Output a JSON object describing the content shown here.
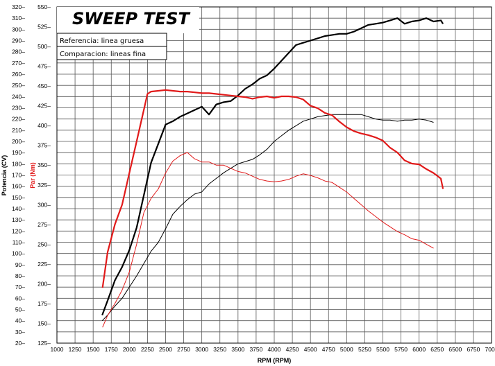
{
  "chart_data": {
    "type": "line",
    "title": "SWEEP TEST",
    "xlabel": "RPM (RPM)",
    "ylabel_left": "Potencia (CV)",
    "ylabel_right": "Par (Nm)",
    "legend": [
      "Referencia: linea gruesa",
      "Comparacion: lineas fina"
    ],
    "xlim": [
      1000,
      7000
    ],
    "x_ticks": [
      1000,
      1250,
      1500,
      1750,
      2000,
      2250,
      2500,
      2750,
      3000,
      3250,
      3500,
      3750,
      4000,
      4250,
      4500,
      4750,
      5000,
      5250,
      5500,
      5750,
      6000,
      6250,
      6500,
      6750,
      7000
    ],
    "ylim_left": [
      20,
      320
    ],
    "y_ticks_left": [
      20,
      30,
      40,
      50,
      60,
      70,
      80,
      90,
      100,
      110,
      120,
      130,
      140,
      150,
      160,
      170,
      180,
      190,
      200,
      210,
      220,
      230,
      240,
      250,
      260,
      270,
      280,
      290,
      300,
      310,
      320
    ],
    "ylim_right": [
      125,
      550
    ],
    "y_ticks_right": [
      125,
      150,
      175,
      200,
      225,
      250,
      275,
      300,
      325,
      350,
      375,
      400,
      425,
      450,
      475,
      500,
      525,
      550
    ],
    "grid": true,
    "colors": {
      "power": "#000000",
      "torque": "#e11a1a"
    },
    "series": [
      {
        "axis": "left",
        "color": "#000000",
        "weight": "thick",
        "x": [
          1625,
          1700,
          1800,
          1900,
          2000,
          2100,
          2200,
          2300,
          2400,
          2500,
          2600,
          2700,
          2800,
          2900,
          3000,
          3100,
          3200,
          3300,
          3400,
          3500,
          3600,
          3700,
          3800,
          3900,
          4000,
          4100,
          4200,
          4300,
          4400,
          4500,
          4600,
          4700,
          4800,
          4900,
          5000,
          5100,
          5200,
          5300,
          5400,
          5500,
          5600,
          5700,
          5800,
          5900,
          6000,
          6100,
          6200,
          6300,
          6330
        ],
        "y": [
          45,
          58,
          76,
          88,
          103,
          123,
          152,
          181,
          198,
          215,
          218,
          222,
          225,
          228,
          231,
          224,
          233,
          235,
          236,
          241,
          247,
          251,
          256,
          259,
          265,
          272,
          279,
          286,
          288,
          290,
          292,
          294,
          295,
          296,
          296,
          298,
          301,
          304,
          305,
          306,
          308,
          310,
          305,
          307,
          308,
          310,
          307,
          308,
          305
        ]
      },
      {
        "axis": "left",
        "color": "#000000",
        "weight": "thin",
        "x": [
          1625,
          1700,
          1800,
          1900,
          2000,
          2100,
          2200,
          2300,
          2400,
          2500,
          2600,
          2700,
          2800,
          2900,
          3000,
          3100,
          3200,
          3300,
          3400,
          3500,
          3600,
          3700,
          3800,
          3900,
          4000,
          4100,
          4200,
          4300,
          4400,
          4500,
          4600,
          4700,
          4800,
          4900,
          5000,
          5100,
          5200,
          5300,
          5400,
          5500,
          5600,
          5700,
          5800,
          5900,
          6000,
          6100,
          6200
        ],
        "y": [
          40,
          45,
          53,
          60,
          70,
          80,
          91,
          102,
          110,
          122,
          135,
          142,
          148,
          153,
          155,
          162,
          167,
          172,
          176,
          180,
          182,
          184,
          188,
          193,
          200,
          205,
          210,
          214,
          218,
          220,
          222,
          223,
          224,
          224,
          224,
          224,
          224,
          222,
          220,
          219,
          219,
          218,
          219,
          219,
          220,
          219,
          217
        ]
      },
      {
        "axis": "right",
        "color": "#e11a1a",
        "weight": "thick",
        "x": [
          1630,
          1700,
          1800,
          1900,
          2000,
          2100,
          2200,
          2250,
          2300,
          2400,
          2500,
          2600,
          2700,
          2800,
          2900,
          3000,
          3100,
          3200,
          3300,
          3400,
          3500,
          3600,
          3700,
          3800,
          3900,
          4000,
          4100,
          4200,
          4300,
          4400,
          4500,
          4600,
          4700,
          4800,
          4900,
          5000,
          5100,
          5200,
          5300,
          5400,
          5500,
          5600,
          5700,
          5800,
          5900,
          6000,
          6100,
          6200,
          6300,
          6330
        ],
        "y": [
          195,
          240,
          275,
          300,
          340,
          380,
          420,
          440,
          443,
          444,
          445,
          444,
          443,
          443,
          442,
          441,
          441,
          440,
          439,
          438,
          437,
          436,
          434,
          436,
          437,
          435,
          437,
          437,
          436,
          433,
          425,
          422,
          416,
          413,
          405,
          398,
          393,
          390,
          388,
          385,
          381,
          372,
          366,
          356,
          352,
          351,
          345,
          340,
          333,
          320
        ]
      },
      {
        "axis": "right",
        "color": "#e11a1a",
        "weight": "thin",
        "x": [
          1630,
          1700,
          1800,
          1900,
          2000,
          2100,
          2200,
          2300,
          2400,
          2500,
          2600,
          2700,
          2800,
          2900,
          3000,
          3100,
          3200,
          3300,
          3400,
          3500,
          3600,
          3700,
          3800,
          3900,
          4000,
          4100,
          4200,
          4300,
          4400,
          4500,
          4600,
          4700,
          4800,
          4900,
          5000,
          5100,
          5200,
          5300,
          5400,
          5500,
          5600,
          5700,
          5800,
          5900,
          6000,
          6100,
          6200
        ],
        "y": [
          145,
          160,
          175,
          192,
          215,
          250,
          290,
          308,
          320,
          340,
          355,
          362,
          366,
          358,
          354,
          354,
          350,
          350,
          346,
          342,
          340,
          336,
          332,
          330,
          329,
          330,
          332,
          336,
          339,
          337,
          334,
          330,
          328,
          322,
          316,
          308,
          300,
          292,
          285,
          278,
          272,
          266,
          262,
          257,
          255,
          250,
          245
        ]
      }
    ]
  }
}
